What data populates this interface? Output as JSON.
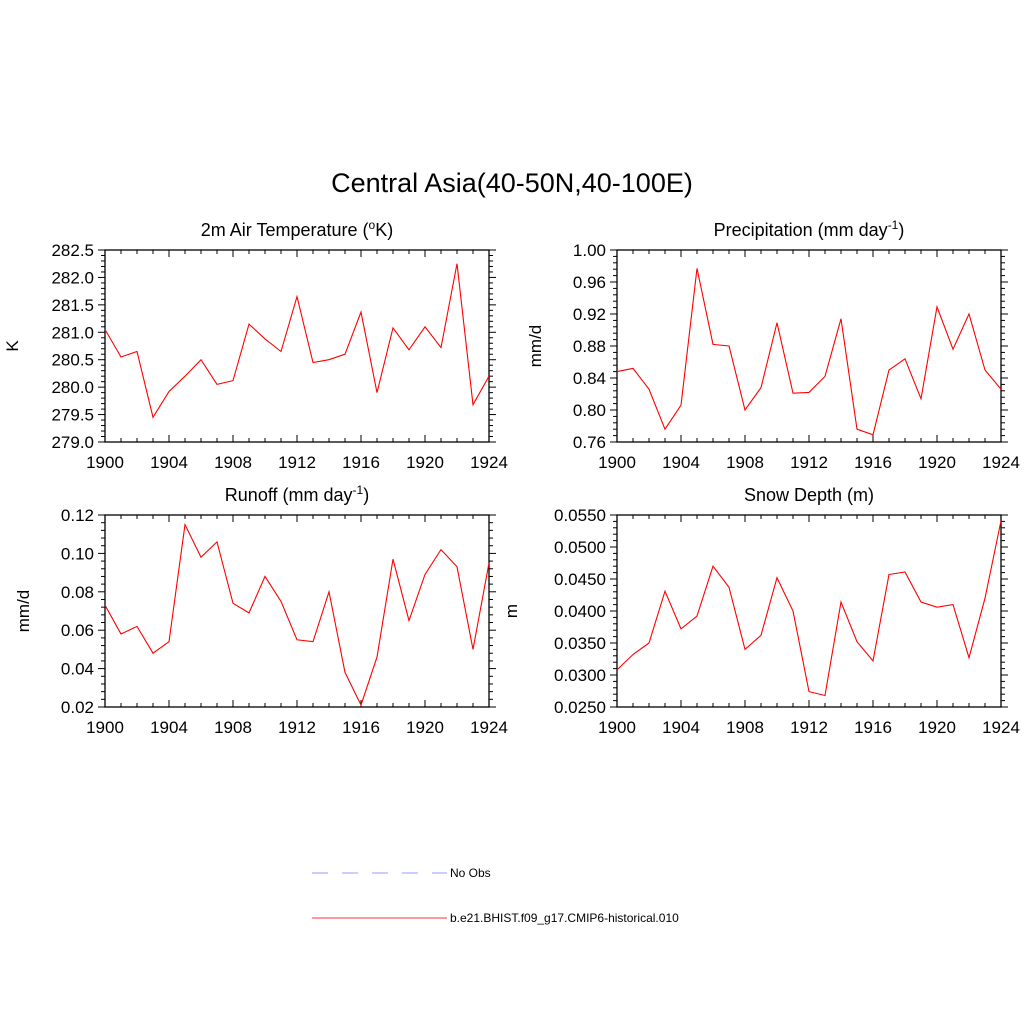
{
  "page": {
    "title": "Central Asia(40-50N,40-100E)"
  },
  "legend": {
    "items": [
      {
        "label": "No Obs",
        "color": "#9999ff",
        "style": "dashed"
      },
      {
        "label": "b.e21.BHIST.f09_g17.CMIP6-historical.010",
        "color": "#ff3333",
        "style": "solid"
      }
    ]
  },
  "chart_data": [
    {
      "type": "line",
      "title": "2m Air Temperature (",
      "title_sup": "o",
      "title_after": "K)",
      "ylabel": "K",
      "xlabel": "",
      "ylim": [
        279.0,
        282.5
      ],
      "yticks": [
        279.0,
        279.5,
        280.0,
        280.5,
        281.0,
        281.5,
        282.0,
        282.5
      ],
      "ytick_labels": [
        "279.0",
        "279.5",
        "280.0",
        "280.5",
        "281.0",
        "281.5",
        "282.0",
        "282.5"
      ],
      "xlim": [
        1900,
        1924
      ],
      "xticks": [
        1900,
        1904,
        1908,
        1912,
        1916,
        1920,
        1924
      ],
      "x": [
        1900,
        1901,
        1902,
        1903,
        1904,
        1905,
        1906,
        1907,
        1908,
        1909,
        1910,
        1911,
        1912,
        1913,
        1914,
        1915,
        1916,
        1917,
        1918,
        1919,
        1920,
        1921,
        1922,
        1923,
        1924
      ],
      "series": [
        {
          "name": "b.e21.BHIST.f09_g17.CMIP6-historical.010",
          "color": "#ff0000",
          "values": [
            281.05,
            280.55,
            280.65,
            279.45,
            279.92,
            280.2,
            280.5,
            280.05,
            280.12,
            281.15,
            280.88,
            280.65,
            281.65,
            280.45,
            280.5,
            280.6,
            281.37,
            279.9,
            281.08,
            280.68,
            281.1,
            280.72,
            282.25,
            279.68,
            280.2
          ]
        }
      ]
    },
    {
      "type": "line",
      "title": "Precipitation (mm day",
      "title_sup": "-1",
      "title_after": ")",
      "ylabel": "mm/d",
      "xlabel": "",
      "ylim": [
        0.76,
        1.0
      ],
      "yticks": [
        0.76,
        0.8,
        0.84,
        0.88,
        0.92,
        0.96,
        1.0
      ],
      "ytick_labels": [
        "0.76",
        "0.80",
        "0.84",
        "0.88",
        "0.92",
        "0.96",
        "1.00"
      ],
      "xlim": [
        1900,
        1924
      ],
      "xticks": [
        1900,
        1904,
        1908,
        1912,
        1916,
        1920,
        1924
      ],
      "x": [
        1900,
        1901,
        1902,
        1903,
        1904,
        1905,
        1906,
        1907,
        1908,
        1909,
        1910,
        1911,
        1912,
        1913,
        1914,
        1915,
        1916,
        1917,
        1918,
        1919,
        1920,
        1921,
        1922,
        1923,
        1924
      ],
      "series": [
        {
          "name": "b.e21.BHIST.f09_g17.CMIP6-historical.010",
          "color": "#ff0000",
          "values": [
            0.848,
            0.852,
            0.826,
            0.776,
            0.806,
            0.977,
            0.882,
            0.88,
            0.8,
            0.828,
            0.909,
            0.821,
            0.822,
            0.842,
            0.914,
            0.776,
            0.769,
            0.85,
            0.864,
            0.814,
            0.929,
            0.876,
            0.92,
            0.85,
            0.826
          ]
        }
      ]
    },
    {
      "type": "line",
      "title": "Runoff (mm day",
      "title_sup": "-1",
      "title_after": ")",
      "ylabel": "mm/d",
      "xlabel": "",
      "ylim": [
        0.02,
        0.12
      ],
      "yticks": [
        0.02,
        0.04,
        0.06,
        0.08,
        0.1,
        0.12
      ],
      "ytick_labels": [
        "0.02",
        "0.04",
        "0.06",
        "0.08",
        "0.10",
        "0.12"
      ],
      "xlim": [
        1900,
        1924
      ],
      "xticks": [
        1900,
        1904,
        1908,
        1912,
        1916,
        1920,
        1924
      ],
      "x": [
        1900,
        1901,
        1902,
        1903,
        1904,
        1905,
        1906,
        1907,
        1908,
        1909,
        1910,
        1911,
        1912,
        1913,
        1914,
        1915,
        1916,
        1917,
        1918,
        1919,
        1920,
        1921,
        1922,
        1923,
        1924
      ],
      "series": [
        {
          "name": "b.e21.BHIST.f09_g17.CMIP6-historical.010",
          "color": "#ff0000",
          "values": [
            0.073,
            0.058,
            0.062,
            0.048,
            0.054,
            0.115,
            0.098,
            0.106,
            0.074,
            0.069,
            0.088,
            0.075,
            0.055,
            0.054,
            0.08,
            0.038,
            0.021,
            0.046,
            0.097,
            0.065,
            0.089,
            0.102,
            0.093,
            0.05,
            0.095
          ]
        }
      ]
    },
    {
      "type": "line",
      "title": "Snow Depth (m)",
      "title_sup": "",
      "title_after": "",
      "ylabel": "m",
      "xlabel": "",
      "ylim": [
        0.025,
        0.055
      ],
      "yticks": [
        0.025,
        0.03,
        0.035,
        0.04,
        0.045,
        0.05,
        0.055
      ],
      "ytick_labels": [
        "0.0250",
        "0.0300",
        "0.0350",
        "0.0400",
        "0.0450",
        "0.0500",
        "0.0550"
      ],
      "xlim": [
        1900,
        1924
      ],
      "xticks": [
        1900,
        1904,
        1908,
        1912,
        1916,
        1920,
        1924
      ],
      "x": [
        1900,
        1901,
        1902,
        1903,
        1904,
        1905,
        1906,
        1907,
        1908,
        1909,
        1910,
        1911,
        1912,
        1913,
        1914,
        1915,
        1916,
        1917,
        1918,
        1919,
        1920,
        1921,
        1922,
        1923,
        1924
      ],
      "series": [
        {
          "name": "b.e21.BHIST.f09_g17.CMIP6-historical.010",
          "color": "#ff0000",
          "values": [
            0.0308,
            0.0332,
            0.035,
            0.0431,
            0.0372,
            0.0392,
            0.047,
            0.0437,
            0.034,
            0.0362,
            0.0452,
            0.04,
            0.0274,
            0.0268,
            0.0414,
            0.0352,
            0.0322,
            0.0457,
            0.0461,
            0.0414,
            0.0406,
            0.041,
            0.0327,
            0.042,
            0.0541
          ]
        }
      ]
    }
  ]
}
